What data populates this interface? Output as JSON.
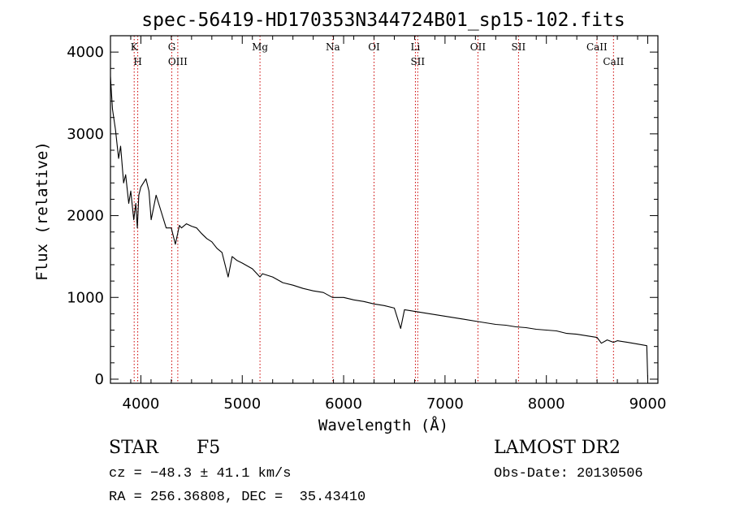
{
  "title": "spec-56419-HD170353N344724B01_sp15-102.fits",
  "info": {
    "object_class": "STAR",
    "subclass": "F5",
    "survey": "LAMOST DR2",
    "cz": "cz = −48.3 ± 41.1 km/s",
    "obs_date": "Obs-Date: 20130506",
    "coords": "RA = 256.36808, DEC =  35.43410"
  },
  "chart_data": {
    "type": "line",
    "title": "spec-56419-HD170353N344724B01_sp15-102.fits",
    "xlabel": "Wavelength (Å)",
    "ylabel": "Flux (relative)",
    "xlim": [
      3700,
      9100
    ],
    "ylim": [
      -50,
      4200
    ],
    "xticks": [
      4000,
      5000,
      6000,
      7000,
      8000,
      9000
    ],
    "yticks": [
      0,
      1000,
      2000,
      3000,
      4000
    ],
    "grid": false,
    "line_color": "#000000",
    "marker_color": "#cc0000",
    "series": [
      {
        "x": [
          3700,
          3720,
          3750,
          3780,
          3800,
          3830,
          3850,
          3880,
          3900,
          3930,
          3950,
          3965,
          3980,
          4000,
          4050,
          4080,
          4101,
          4150,
          4200,
          4250,
          4300,
          4340,
          4380,
          4400,
          4450,
          4500,
          4550,
          4600,
          4650,
          4700,
          4750,
          4800,
          4861,
          4900,
          4950,
          5000,
          5100,
          5175,
          5200,
          5300,
          5400,
          5500,
          5600,
          5700,
          5800,
          5890,
          6000,
          6100,
          6200,
          6300,
          6400,
          6500,
          6563,
          6600,
          6700,
          6800,
          6900,
          7000,
          7100,
          7200,
          7300,
          7400,
          7500,
          7600,
          7700,
          7800,
          7900,
          8000,
          8100,
          8200,
          8300,
          8400,
          8500,
          8542,
          8600,
          8662,
          8700,
          8800,
          8900,
          8990,
          9000
        ],
        "y": [
          3700,
          3300,
          3050,
          2700,
          2850,
          2400,
          2500,
          2150,
          2300,
          1950,
          2150,
          1850,
          2250,
          2350,
          2450,
          2300,
          1950,
          2250,
          2050,
          1850,
          1850,
          1650,
          1880,
          1850,
          1900,
          1870,
          1850,
          1780,
          1720,
          1680,
          1600,
          1550,
          1250,
          1500,
          1450,
          1420,
          1350,
          1250,
          1290,
          1250,
          1180,
          1150,
          1110,
          1080,
          1060,
          1000,
          1000,
          970,
          950,
          920,
          900,
          870,
          620,
          850,
          830,
          810,
          790,
          770,
          750,
          730,
          710,
          690,
          670,
          660,
          640,
          630,
          610,
          600,
          590,
          560,
          550,
          530,
          510,
          440,
          480,
          450,
          470,
          450,
          430,
          410,
          0
        ]
      }
    ],
    "lines": [
      {
        "name": "K",
        "wavelength": 3934
      },
      {
        "name": "H",
        "wavelength": 3969
      },
      {
        "name": "G",
        "wavelength": 4305
      },
      {
        "name": "OIII",
        "wavelength": 4364
      },
      {
        "name": "Mg",
        "wavelength": 5175
      },
      {
        "name": "Na",
        "wavelength": 5894
      },
      {
        "name": "OI",
        "wavelength": 6300
      },
      {
        "name": "Li",
        "wavelength": 6708
      },
      {
        "name": "SII",
        "wavelength": 6731
      },
      {
        "name": "OII",
        "wavelength": 7325
      },
      {
        "name": "SII",
        "wavelength": 7725
      },
      {
        "name": "CaII",
        "wavelength": 8498
      },
      {
        "name": "CaII",
        "wavelength": 8662
      }
    ]
  }
}
